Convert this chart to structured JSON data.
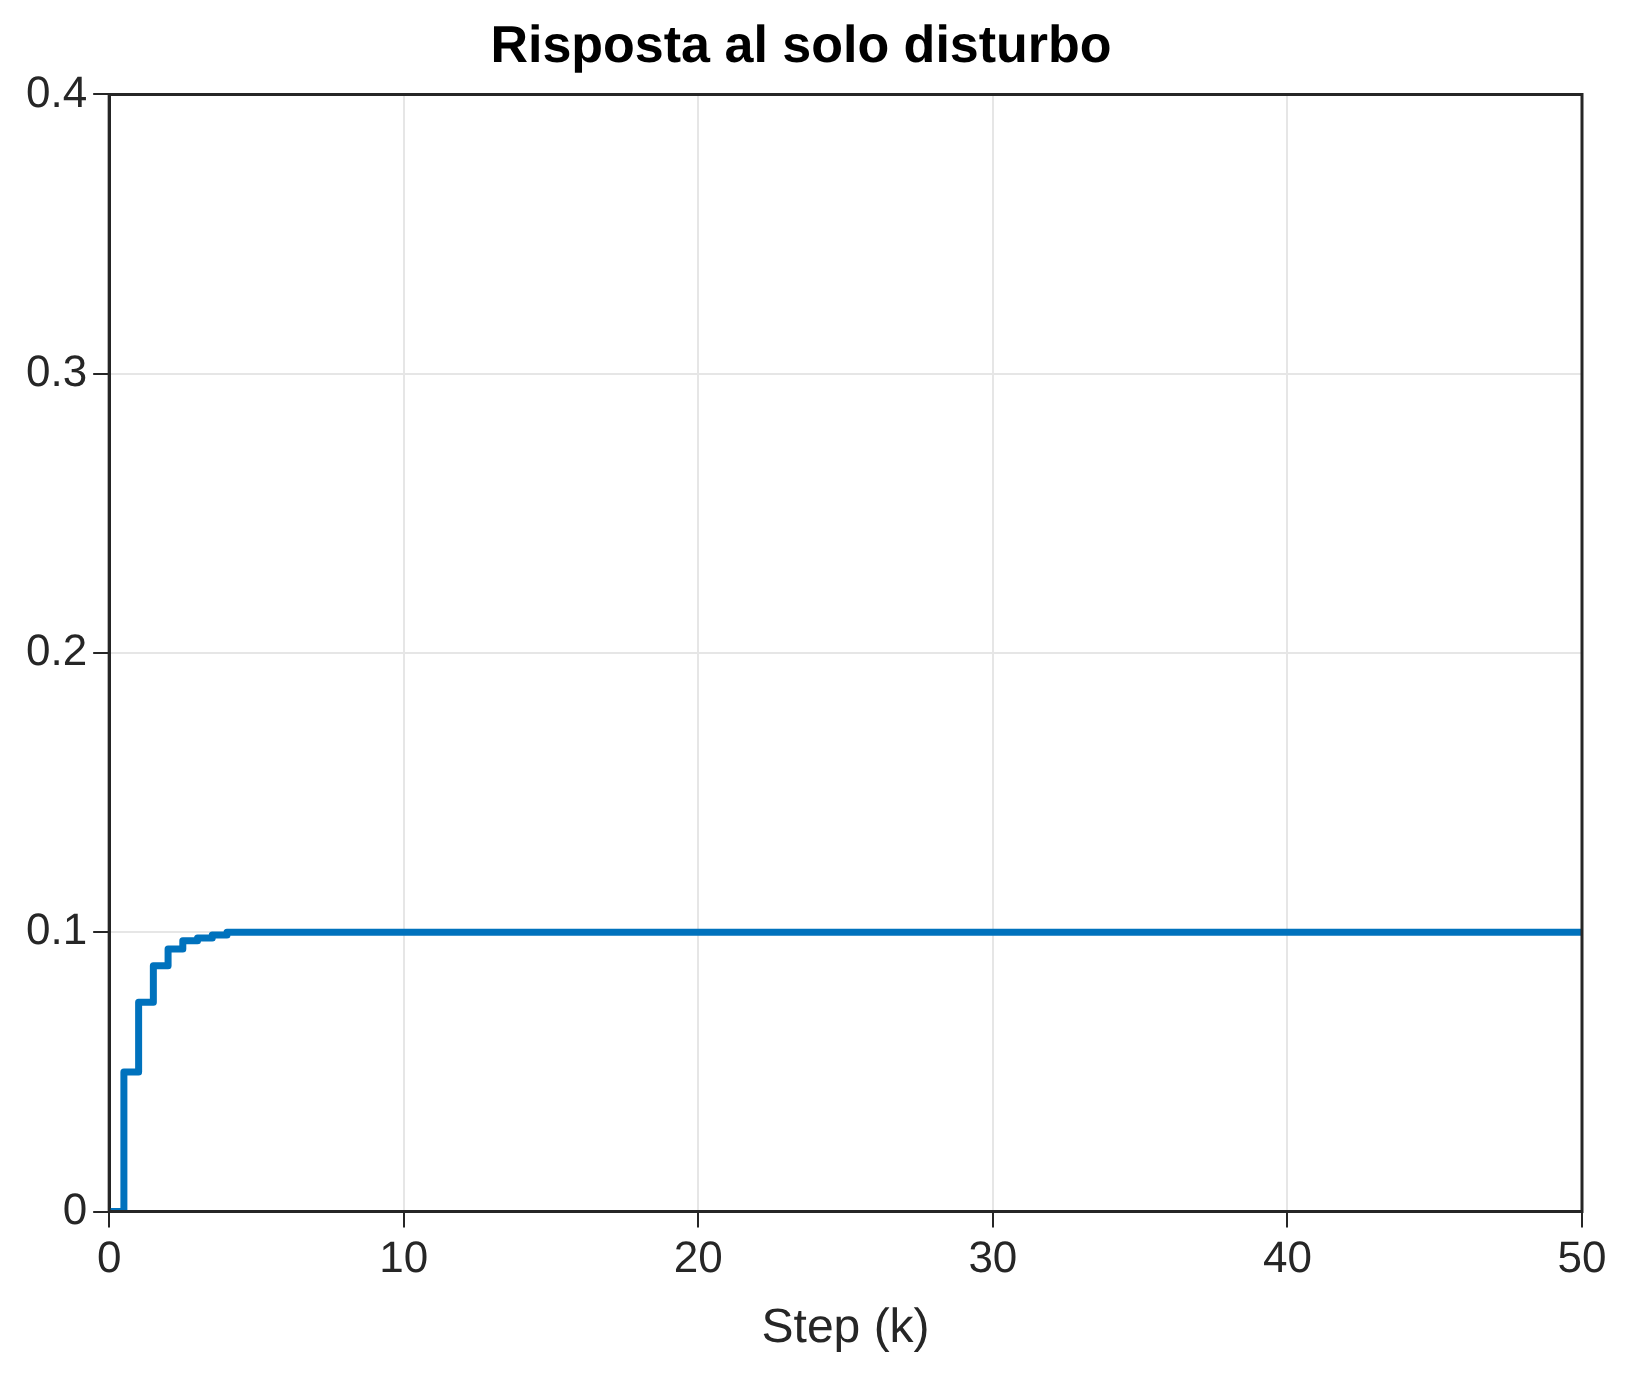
{
  "chart_data": {
    "type": "step",
    "title": "Risposta al solo disturbo",
    "xlabel": "Step (k)",
    "x": [
      0,
      0.5,
      1,
      1.5,
      2,
      2.5,
      3,
      3.5,
      4,
      50
    ],
    "series": [
      {
        "color": "#0072bd",
        "values": [
          0,
          0.05,
          0.075,
          0.088,
          0.094,
          0.097,
          0.098,
          0.099,
          0.1,
          0.1
        ]
      }
    ],
    "xlim": [
      0,
      50
    ],
    "xticks": [
      0,
      10,
      20,
      30,
      40,
      50
    ],
    "ylim": [
      0,
      0.4
    ],
    "yticks": [
      0,
      0.1,
      0.2,
      0.3,
      0.4
    ],
    "grid": true,
    "legend": false
  }
}
